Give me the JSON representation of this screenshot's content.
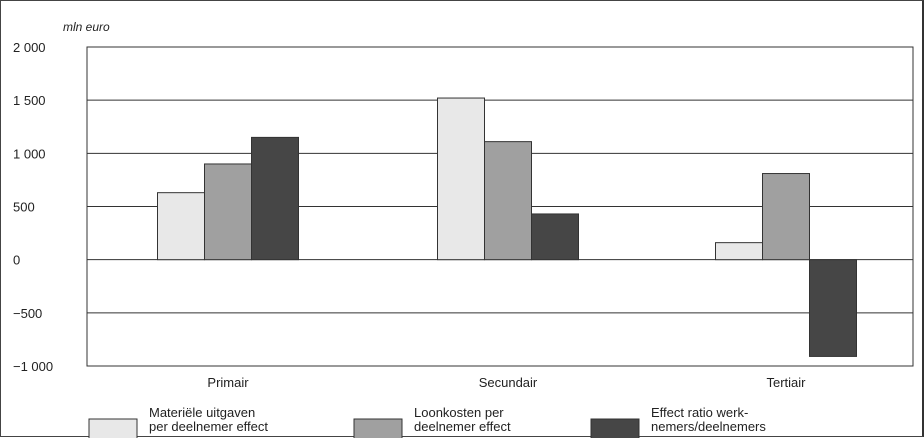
{
  "chart_data": {
    "type": "bar",
    "unit_label": "mln euro",
    "categories": [
      "Primair",
      "Secundair",
      "Tertiair"
    ],
    "series": [
      {
        "name_lines": [
          "Materiële uitgaven",
          "per deelnemer effect"
        ],
        "color": "#e8e8e8",
        "values": [
          630,
          1520,
          160
        ]
      },
      {
        "name_lines": [
          "Loonkosten per",
          "deelnemer effect"
        ],
        "color": "#a0a0a0",
        "values": [
          900,
          1110,
          810
        ]
      },
      {
        "name_lines": [
          "Effect ratio werk-",
          "nemers/deelnemers"
        ],
        "color": "#464646",
        "values": [
          1150,
          430,
          -910
        ]
      }
    ],
    "ylim": [
      -1000,
      2000
    ],
    "yticks": [
      -1000,
      -500,
      0,
      500,
      1000,
      1500,
      2000
    ],
    "ytick_labels": [
      "−1 000",
      "−500",
      "0",
      "500",
      "1 000",
      "1 500",
      "2 000"
    ],
    "grid": true,
    "legend": "bottom"
  }
}
